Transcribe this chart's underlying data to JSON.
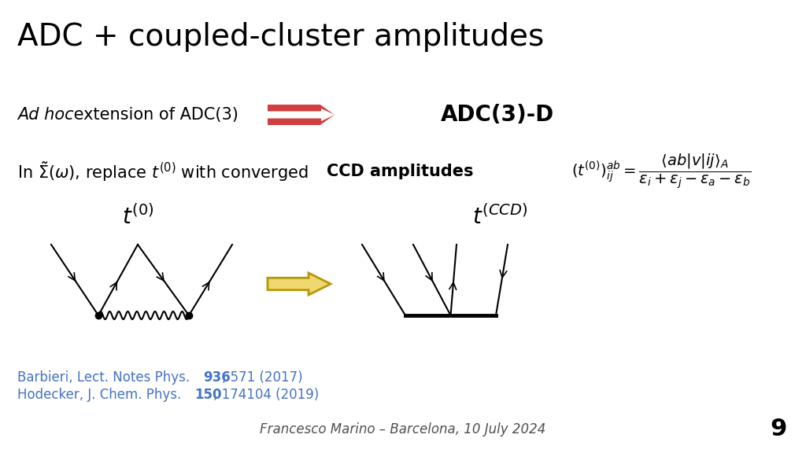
{
  "title": "ADC + coupled-cluster amplitudes",
  "title_fontsize": 28,
  "bg_color": "#ffffff",
  "adhoc_text_italic": "Ad hoc",
  "adhoc_text_normal": " extension of ADC(3)",
  "adc3d_text": "ADC(3)-D",
  "ref_color": "#4472c4",
  "footer_color": "#505050",
  "footer": "Francesco Marino – Barcelona, 10 July 2024",
  "page_num": "9"
}
